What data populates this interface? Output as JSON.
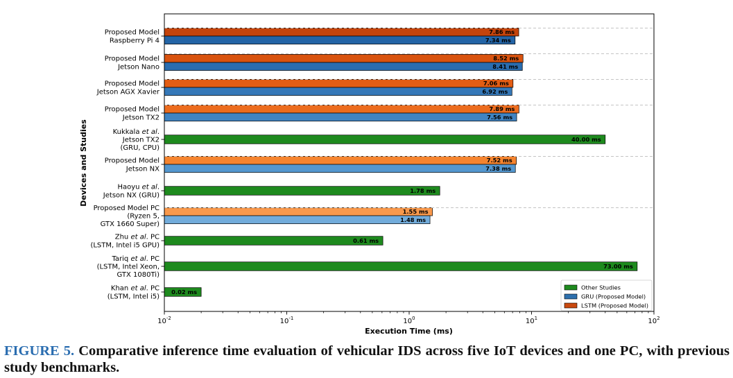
{
  "chart_data": {
    "type": "bar",
    "orientation": "horizontal",
    "xscale": "log",
    "xlim": [
      0.01,
      100
    ],
    "xticks": [
      0.01,
      0.1,
      1,
      10,
      100
    ],
    "xlabel": "Execution Time (ms)",
    "ylabel": "Devices and Studies",
    "legend_position": "bottom-right",
    "legend": [
      {
        "label": "Other Studies",
        "color": "#1e8a1e"
      },
      {
        "label": "GRU (Proposed Model)",
        "color": "#2d6fad"
      },
      {
        "label": "LSTM (Proposed Model)",
        "color": "#c9490f"
      }
    ],
    "groups": [
      {
        "label_lines": [
          [
            "Proposed Model"
          ],
          [
            "Raspberry Pi 4"
          ]
        ],
        "bars": [
          {
            "series": "LSTM (Proposed Model)",
            "value": 7.86,
            "label": "7.86 ms",
            "color": "#c4440c"
          },
          {
            "series": "GRU (Proposed Model)",
            "value": 7.34,
            "label": "7.34 ms",
            "color": "#2364a6"
          }
        ]
      },
      {
        "label_lines": [
          [
            "Proposed Model"
          ],
          [
            "Jetson Nano"
          ]
        ],
        "bars": [
          {
            "series": "LSTM (Proposed Model)",
            "value": 8.52,
            "label": "8.52 ms",
            "color": "#d9530f"
          },
          {
            "series": "GRU (Proposed Model)",
            "value": 8.41,
            "label": "8.41 ms",
            "color": "#2a6db0"
          }
        ]
      },
      {
        "label_lines": [
          [
            "Proposed Model"
          ],
          [
            "Jetson AGX Xavier"
          ]
        ],
        "bars": [
          {
            "series": "LSTM (Proposed Model)",
            "value": 7.06,
            "label": "7.06 ms",
            "color": "#e35d14"
          },
          {
            "series": "GRU (Proposed Model)",
            "value": 6.92,
            "label": "6.92 ms",
            "color": "#3578b8"
          }
        ]
      },
      {
        "label_lines": [
          [
            "Proposed Model"
          ],
          [
            "Jetson TX2"
          ]
        ],
        "bars": [
          {
            "series": "LSTM (Proposed Model)",
            "value": 7.89,
            "label": "7.89 ms",
            "color": "#ec6c1e"
          },
          {
            "series": "GRU (Proposed Model)",
            "value": 7.56,
            "label": "7.56 ms",
            "color": "#4084c2"
          }
        ]
      },
      {
        "label_lines": [
          [
            "Kukkala ",
            "et al",
            "."
          ],
          [
            "Jetson TX2"
          ],
          [
            "(GRU, CPU)"
          ]
        ],
        "bars": [
          {
            "series": "Other Studies",
            "value": 40.0,
            "label": "40.00 ms",
            "color": "#1e8a1e"
          }
        ]
      },
      {
        "label_lines": [
          [
            "Proposed Model"
          ],
          [
            "Jetson NX"
          ]
        ],
        "bars": [
          {
            "series": "LSTM (Proposed Model)",
            "value": 7.52,
            "label": "7.52 ms",
            "color": "#f5842f"
          },
          {
            "series": "GRU (Proposed Model)",
            "value": 7.38,
            "label": "7.38 ms",
            "color": "#5497cf"
          }
        ]
      },
      {
        "label_lines": [
          [
            "Haoyu ",
            "et al",
            "."
          ],
          [
            "Jetson NX (GRU)"
          ]
        ],
        "bars": [
          {
            "series": "Other Studies",
            "value": 1.78,
            "label": "1.78 ms",
            "color": "#1e8a1e"
          }
        ]
      },
      {
        "label_lines": [
          [
            "Proposed Model PC"
          ],
          [
            "(Ryzen 5,"
          ],
          [
            "GTX 1660 Super)"
          ]
        ],
        "bars": [
          {
            "series": "LSTM (Proposed Model)",
            "value": 1.55,
            "label": "1.55 ms",
            "color": "#f9994c"
          },
          {
            "series": "GRU (Proposed Model)",
            "value": 1.48,
            "label": "1.48 ms",
            "color": "#72acdb"
          }
        ]
      },
      {
        "label_lines": [
          [
            "Zhu ",
            "et al",
            ". PC"
          ],
          [
            "(LSTM, Intel i5 GPU)"
          ]
        ],
        "bars": [
          {
            "series": "Other Studies",
            "value": 0.61,
            "label": "0.61 ms",
            "color": "#1e8a1e"
          }
        ]
      },
      {
        "label_lines": [
          [
            "Tariq ",
            "et al",
            ". PC"
          ],
          [
            "(LSTM, Intel Xeon,"
          ],
          [
            "GTX 1080Ti)"
          ]
        ],
        "bars": [
          {
            "series": "Other Studies",
            "value": 73.0,
            "label": "73.00 ms",
            "color": "#1e8a1e"
          }
        ]
      },
      {
        "label_lines": [
          [
            "Khan ",
            "et al",
            ". PC"
          ],
          [
            "(LSTM, Intel i5)"
          ]
        ],
        "bars": [
          {
            "series": "Other Studies",
            "value": 0.02,
            "label": "0.02 ms",
            "color": "#1e8a1e"
          }
        ]
      }
    ]
  },
  "caption": {
    "label": "FIGURE 5.",
    "text": "Comparative inference time evaluation of vehicular IDS across five IoT devices and one PC, with previous study benchmarks."
  }
}
